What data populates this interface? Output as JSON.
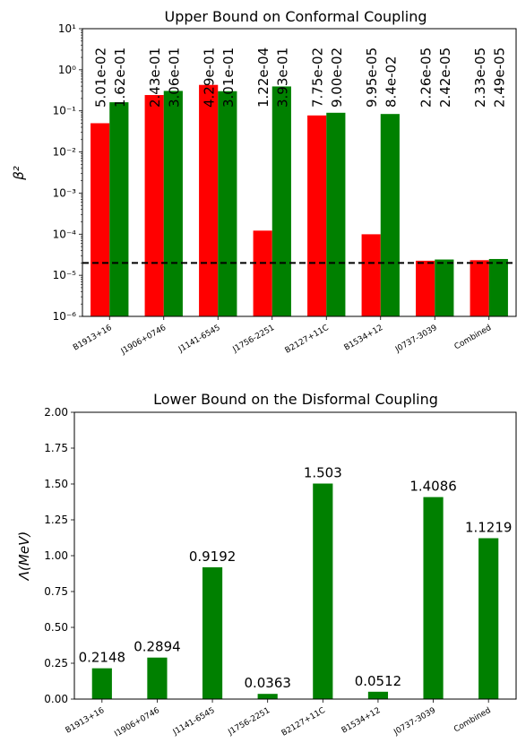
{
  "chart_data": [
    {
      "type": "bar",
      "title": "Upper Bound on Conformal Coupling",
      "ylabel": "β²",
      "yscale": "log",
      "ylim": [
        1e-06,
        10
      ],
      "grid": false,
      "categories": [
        "B1913+16",
        "J1906+0746",
        "J1141-6545",
        "J1756-2251",
        "B2127+11C",
        "B1534+12",
        "J0737-3039",
        "Combined"
      ],
      "y_ticks": [
        {
          "value": 1e-06,
          "label": "10⁻⁶"
        },
        {
          "value": 1e-05,
          "label": "10⁻⁵"
        },
        {
          "value": 0.0001,
          "label": "10⁻⁴"
        },
        {
          "value": 0.001,
          "label": "10⁻³"
        },
        {
          "value": 0.01,
          "label": "10⁻²"
        },
        {
          "value": 0.1,
          "label": "10⁻¹"
        },
        {
          "value": 1,
          "label": "10⁰"
        },
        {
          "value": 10,
          "label": "10¹"
        }
      ],
      "series": [
        {
          "color": "#ff0000",
          "values": [
            0.0501,
            0.243,
            0.429,
            0.000122,
            0.0775,
            9.95e-05,
            2.26e-05,
            2.33e-05
          ],
          "labels": [
            "5.01e-02",
            "2.43e-01",
            "4.29e-01",
            "1.22e-04",
            "7.75e-02",
            "9.95e-05",
            "2.26e-05",
            "2.33e-05"
          ]
        },
        {
          "color": "#008000",
          "values": [
            0.162,
            0.306,
            0.301,
            0.393,
            0.09,
            0.084,
            2.42e-05,
            2.49e-05
          ],
          "labels": [
            "1.62e-01",
            "3.06e-01",
            "3.01e-01",
            "3.93e-01",
            "9.00e-02",
            "8.4e-02",
            "2.42e-05",
            "2.49e-05"
          ]
        }
      ],
      "reference_line": {
        "value": 2e-05,
        "style": "dashed",
        "color": "#000000"
      }
    },
    {
      "type": "bar",
      "title": "Lower Bound on the Disformal Coupling",
      "ylabel": "Λ(MeV)",
      "ylim": [
        0,
        2.0
      ],
      "grid": false,
      "categories": [
        "B1913+16",
        "I1906+0746",
        "J1141-6545",
        "J1756-2251",
        "B2127+11C",
        "B1534+12",
        "J0737-3039",
        "Combined"
      ],
      "y_ticks": [
        {
          "value": 0.0,
          "label": "0.00"
        },
        {
          "value": 0.25,
          "label": "0.25"
        },
        {
          "value": 0.5,
          "label": "0.50"
        },
        {
          "value": 0.75,
          "label": "0.75"
        },
        {
          "value": 1.0,
          "label": "1.00"
        },
        {
          "value": 1.25,
          "label": "1.25"
        },
        {
          "value": 1.5,
          "label": "1.50"
        },
        {
          "value": 1.75,
          "label": "1.75"
        },
        {
          "value": 2.0,
          "label": "2.00"
        }
      ],
      "series": [
        {
          "color": "#008000",
          "values": [
            0.2148,
            0.2894,
            0.9192,
            0.0363,
            1.503,
            0.0512,
            1.4086,
            1.1219
          ],
          "labels": [
            "0.2148",
            "0.2894",
            "0.9192",
            "0.0363",
            "1.503",
            "0.0512",
            "1.4086",
            "1.1219"
          ]
        }
      ]
    }
  ]
}
